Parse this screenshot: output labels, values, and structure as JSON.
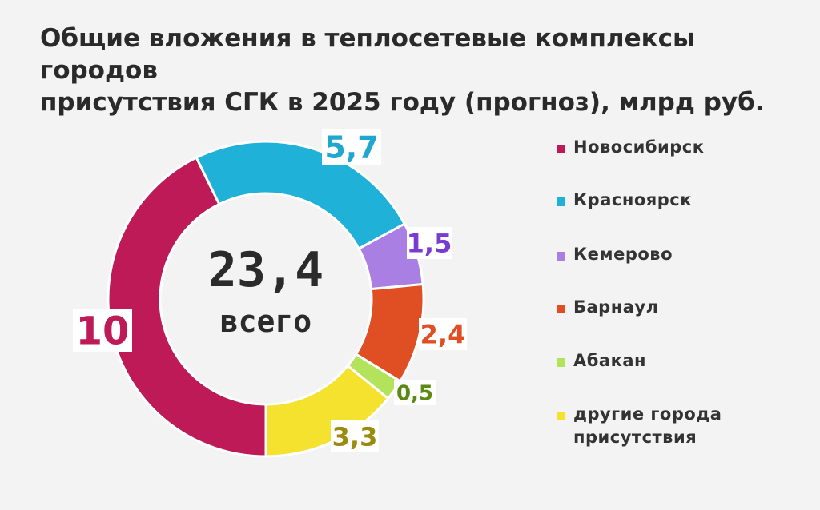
{
  "title": {
    "line1": "Общие вложения в теплосетевые комплексы городов",
    "line2": "присутствия СГК в 2025 году (прогноз), млрд руб."
  },
  "center": {
    "total": "23,4",
    "label": "всего"
  },
  "chart_data": {
    "type": "pie",
    "variant": "donut",
    "title": "Общие вложения в теплосетевые комплексы городов присутствия СГК в 2025 году (прогноз), млрд руб.",
    "total": 23.4,
    "legend_position": "right",
    "series": [
      {
        "name": "Новосибирск",
        "value": 10,
        "label": "10",
        "color": "#bd1a57",
        "label_color": "#bd1a57"
      },
      {
        "name": "Красноярск",
        "value": 5.7,
        "label": "5,7",
        "color": "#1fb1d7",
        "label_color": "#1fa7cf"
      },
      {
        "name": "Кемерово",
        "value": 1.5,
        "label": "1,5",
        "color": "#a97fe3",
        "label_color": "#7a3bd2"
      },
      {
        "name": "Барнаул",
        "value": 2.4,
        "label": "2,4",
        "color": "#e04e23",
        "label_color": "#e04e23"
      },
      {
        "name": "Абакан",
        "value": 0.5,
        "label": "0,5",
        "color": "#b2e35b",
        "label_color": "#5a8a12"
      },
      {
        "name": "другие города присутствия",
        "value": 3.3,
        "label": "3,3",
        "color": "#f5e22e",
        "label_color": "#9a8a0d"
      }
    ]
  }
}
